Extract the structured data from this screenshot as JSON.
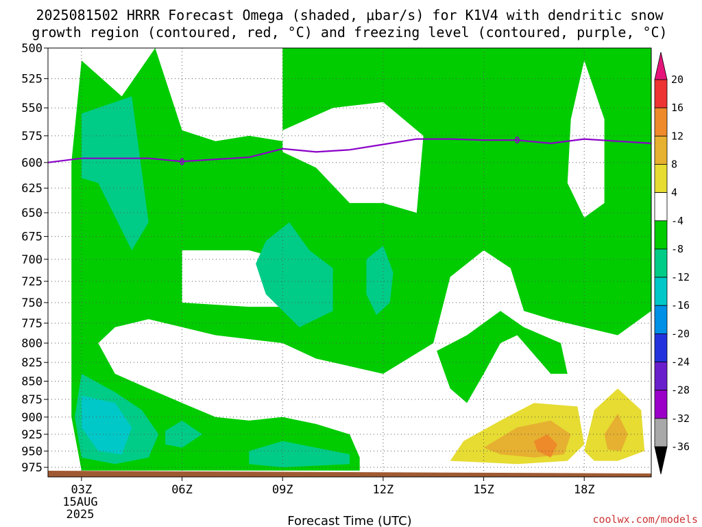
{
  "chart_data": {
    "type": "heatmap",
    "title_line1": "2025081502 HRRR Forecast Omega (shaded, μbar/s) for K1V4 with dendritic snow",
    "title_line2": "growth region (contoured, red, °C) and freezing level (contoured, purple, °C)",
    "xlabel": "Forecast Time (UTC)",
    "x_ticks": [
      "03Z",
      "06Z",
      "09Z",
      "12Z",
      "15Z",
      "18Z"
    ],
    "x_tick_hours": [
      3,
      6,
      9,
      12,
      15,
      18
    ],
    "x_date_line": "15AUG",
    "x_year_line": "2025",
    "xlim": [
      2,
      20
    ],
    "y_levels": [
      500,
      525,
      550,
      575,
      600,
      625,
      650,
      675,
      700,
      725,
      750,
      775,
      800,
      825,
      850,
      875,
      900,
      925,
      950,
      975
    ],
    "ylim": [
      500,
      990
    ],
    "y_scale": "log-pressure (inverted)",
    "grid": true,
    "colorbar": {
      "ticks": [
        20,
        16,
        12,
        8,
        4,
        -4,
        -8,
        -12,
        -16,
        -20,
        -24,
        -28,
        -32,
        -36
      ],
      "bins": [
        {
          "lo": 16,
          "hi": 20,
          "color": "#ee3333"
        },
        {
          "lo": 12,
          "hi": 16,
          "color": "#ee8a2a"
        },
        {
          "lo": 8,
          "hi": 12,
          "color": "#e6b030"
        },
        {
          "lo": 4,
          "hi": 8,
          "color": "#e6dc32"
        },
        {
          "lo": -4,
          "hi": 4,
          "color": "#ffffff"
        },
        {
          "lo": -8,
          "hi": -4,
          "color": "#00cc00"
        },
        {
          "lo": -12,
          "hi": -8,
          "color": "#00cc88"
        },
        {
          "lo": -16,
          "hi": -12,
          "color": "#00c8c8"
        },
        {
          "lo": -20,
          "hi": -16,
          "color": "#0090e6"
        },
        {
          "lo": -24,
          "hi": -20,
          "color": "#2233dd"
        },
        {
          "lo": -28,
          "hi": -24,
          "color": "#6a1fcc"
        },
        {
          "lo": -32,
          "hi": -28,
          "color": "#9a00c8"
        },
        {
          "lo": -36,
          "hi": -32,
          "color": "#a8a8a8"
        }
      ],
      "over_color": "#e6147a",
      "under_color": "#000000"
    },
    "freezing_level": {
      "label": "0",
      "color": "#8a00c8",
      "hours": [
        2,
        3,
        4,
        5,
        6,
        7,
        8,
        9,
        10,
        11,
        12,
        13,
        14,
        15,
        16,
        17,
        18,
        19,
        20
      ],
      "pressure_hpa": [
        600,
        596,
        596,
        596,
        599,
        597,
        595,
        587,
        590,
        588,
        583,
        578,
        578,
        579,
        579,
        582,
        578,
        580,
        582
      ]
    },
    "shaded_regions": [
      {
        "class": -6,
        "color": "#00cc00",
        "points": [
          [
            3.0,
            510
          ],
          [
            4.2,
            540
          ],
          [
            5.2,
            500
          ],
          [
            6.0,
            570
          ],
          [
            7.0,
            580
          ],
          [
            8.0,
            575
          ],
          [
            9.0,
            580
          ],
          [
            9.0,
            500
          ],
          [
            12.5,
            500
          ],
          [
            14.0,
            500
          ],
          [
            20.0,
            500
          ],
          [
            20.0,
            760
          ],
          [
            19.0,
            790
          ],
          [
            18.0,
            780
          ],
          [
            17.0,
            770
          ],
          [
            16.2,
            760
          ],
          [
            15.8,
            710
          ],
          [
            15.0,
            690
          ],
          [
            14.0,
            720
          ],
          [
            13.5,
            800
          ],
          [
            12.0,
            840
          ],
          [
            10.0,
            820
          ],
          [
            9.0,
            800
          ],
          [
            7.0,
            790
          ],
          [
            5.0,
            770
          ],
          [
            4.0,
            780
          ],
          [
            3.5,
            800
          ],
          [
            4.0,
            840
          ],
          [
            5.0,
            860
          ],
          [
            6.0,
            880
          ],
          [
            7.0,
            900
          ],
          [
            8.0,
            905
          ],
          [
            9.0,
            900
          ],
          [
            10.0,
            910
          ],
          [
            11.0,
            925
          ],
          [
            11.3,
            960
          ],
          [
            11.3,
            980
          ],
          [
            3.0,
            980
          ],
          [
            2.7,
            900
          ],
          [
            2.7,
            600
          ]
        ]
      },
      {
        "class": -6,
        "color": "#00cc00",
        "points": [
          [
            13.6,
            810
          ],
          [
            14.0,
            860
          ],
          [
            14.5,
            880
          ],
          [
            15.0,
            840
          ],
          [
            15.5,
            800
          ],
          [
            16.0,
            790
          ],
          [
            17.0,
            840
          ],
          [
            17.5,
            840
          ],
          [
            17.3,
            800
          ],
          [
            16.2,
            780
          ],
          [
            15.5,
            760
          ],
          [
            14.5,
            790
          ]
        ]
      },
      {
        "class": 0,
        "color": "#ffffff",
        "points": [
          [
            6.0,
            690
          ],
          [
            6.0,
            750
          ],
          [
            8.0,
            755
          ],
          [
            9.0,
            755
          ],
          [
            9.0,
            700
          ],
          [
            8.0,
            690
          ],
          [
            7.0,
            690
          ]
        ]
      },
      {
        "class": 0,
        "color": "#ffffff",
        "points": [
          [
            9.0,
            570
          ],
          [
            10.5,
            550
          ],
          [
            12.0,
            545
          ],
          [
            13.2,
            575
          ],
          [
            13.0,
            650
          ],
          [
            12.0,
            640
          ],
          [
            11.0,
            640
          ],
          [
            10.0,
            605
          ],
          [
            9.0,
            590
          ]
        ]
      },
      {
        "class": 0,
        "color": "#ffffff",
        "points": [
          [
            17.6,
            560
          ],
          [
            18.0,
            510
          ],
          [
            18.6,
            560
          ],
          [
            18.6,
            640
          ],
          [
            18.0,
            655
          ],
          [
            17.5,
            620
          ]
        ]
      },
      {
        "class": -10,
        "color": "#00cc88",
        "points": [
          [
            3.0,
            555
          ],
          [
            4.5,
            540
          ],
          [
            5.0,
            660
          ],
          [
            4.5,
            690
          ],
          [
            3.5,
            620
          ],
          [
            3.0,
            615
          ]
        ]
      },
      {
        "class": -10,
        "color": "#00cc88",
        "points": [
          [
            8.5,
            680
          ],
          [
            9.2,
            660
          ],
          [
            9.8,
            690
          ],
          [
            10.5,
            710
          ],
          [
            10.5,
            760
          ],
          [
            9.5,
            780
          ],
          [
            8.5,
            740
          ],
          [
            8.2,
            705
          ]
        ]
      },
      {
        "class": -10,
        "color": "#00cc88",
        "points": [
          [
            11.5,
            700
          ],
          [
            12.0,
            685
          ],
          [
            12.3,
            715
          ],
          [
            12.2,
            750
          ],
          [
            11.8,
            765
          ],
          [
            11.5,
            740
          ]
        ]
      },
      {
        "class": -10,
        "color": "#00cc88",
        "points": [
          [
            3.0,
            840
          ],
          [
            4.0,
            865
          ],
          [
            4.8,
            890
          ],
          [
            5.3,
            925
          ],
          [
            5.0,
            960
          ],
          [
            4.0,
            970
          ],
          [
            3.0,
            960
          ],
          [
            2.8,
            900
          ]
        ]
      },
      {
        "class": -10,
        "color": "#00cc88",
        "points": [
          [
            5.5,
            920
          ],
          [
            6.0,
            905
          ],
          [
            6.6,
            925
          ],
          [
            6.0,
            945
          ],
          [
            5.5,
            940
          ]
        ]
      },
      {
        "class": -10,
        "color": "#00cc88",
        "points": [
          [
            8.0,
            950
          ],
          [
            9.0,
            935
          ],
          [
            10.0,
            945
          ],
          [
            11.0,
            955
          ],
          [
            11.0,
            970
          ],
          [
            9.0,
            975
          ],
          [
            8.0,
            970
          ]
        ]
      },
      {
        "class": -14,
        "color": "#00c8c8",
        "points": [
          [
            3.0,
            870
          ],
          [
            4.0,
            880
          ],
          [
            4.5,
            915
          ],
          [
            4.2,
            955
          ],
          [
            3.5,
            950
          ],
          [
            3.0,
            915
          ]
        ]
      },
      {
        "class": 6,
        "color": "#e6dc32",
        "points": [
          [
            14.0,
            965
          ],
          [
            14.4,
            935
          ],
          [
            15.5,
            905
          ],
          [
            16.5,
            880
          ],
          [
            17.8,
            885
          ],
          [
            18.0,
            940
          ],
          [
            17.5,
            965
          ],
          [
            16.0,
            970
          ]
        ]
      },
      {
        "class": 6,
        "color": "#e6dc32",
        "points": [
          [
            18.0,
            950
          ],
          [
            18.3,
            890
          ],
          [
            19.0,
            860
          ],
          [
            19.7,
            890
          ],
          [
            19.8,
            950
          ],
          [
            19.0,
            965
          ],
          [
            18.3,
            965
          ]
        ]
      },
      {
        "class": 10,
        "color": "#e6b030",
        "points": [
          [
            15.0,
            945
          ],
          [
            16.0,
            915
          ],
          [
            17.0,
            905
          ],
          [
            17.6,
            925
          ],
          [
            17.4,
            955
          ],
          [
            16.5,
            960
          ],
          [
            15.5,
            955
          ]
        ]
      },
      {
        "class": 10,
        "color": "#e6b030",
        "points": [
          [
            18.6,
            925
          ],
          [
            19.0,
            895
          ],
          [
            19.3,
            925
          ],
          [
            19.1,
            950
          ],
          [
            18.7,
            948
          ]
        ]
      },
      {
        "class": 14,
        "color": "#ee8a2a",
        "points": [
          [
            16.5,
            935
          ],
          [
            16.9,
            925
          ],
          [
            17.2,
            940
          ],
          [
            17.0,
            960
          ],
          [
            16.6,
            950
          ]
        ]
      }
    ],
    "surface_color": "#a05a32"
  },
  "credit": "coolwx.com/models"
}
